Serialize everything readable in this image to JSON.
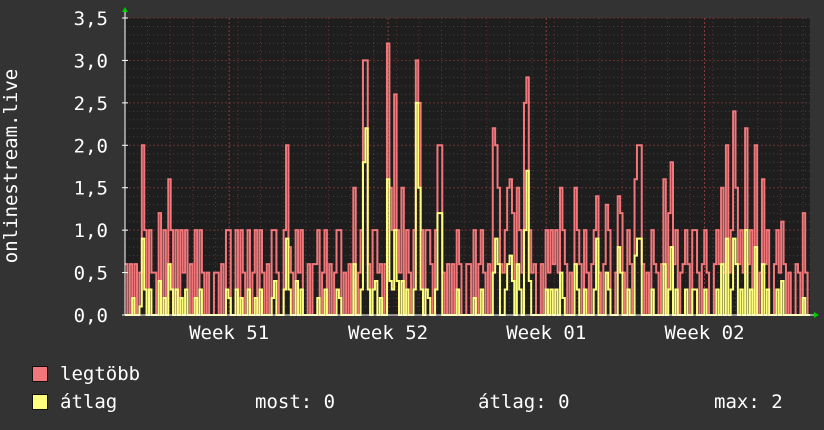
{
  "chart_data": {
    "type": "line",
    "ylabel": "onlinestream.live",
    "ylim": [
      0,
      3.5
    ],
    "y_ticks": [
      "0,0",
      "0,5",
      "1,0",
      "1,5",
      "2,0",
      "2,5",
      "3,0",
      "3,5"
    ],
    "x_ticks": [
      {
        "label": "Week 51",
        "pos": 0.152
      },
      {
        "label": "Week 52",
        "pos": 0.384
      },
      {
        "label": "Week 01",
        "pos": 0.615
      },
      {
        "label": "Week 02",
        "pos": 0.846
      }
    ],
    "grid": true,
    "series": [
      {
        "name": "legtöbb",
        "color": "#F2777A",
        "values": [
          0.6,
          0,
          0.6,
          0,
          0.6,
          0,
          0.5,
          2.0,
          1.0,
          0,
          1.0,
          0.5,
          0.5,
          0,
          1.2,
          0,
          1.0,
          0,
          1.6,
          1.0,
          0,
          1.0,
          0,
          1.0,
          0.5,
          1.0,
          0,
          0.6,
          0,
          1.0,
          0,
          1.0,
          0.5,
          0,
          0.5,
          0,
          0,
          0.5,
          0.5,
          0,
          0.6,
          0,
          1.0,
          1.0,
          0,
          0,
          1.0,
          0,
          1.0,
          0.5,
          0,
          1.0,
          0,
          0.5,
          1.0,
          0,
          1.0,
          0.5,
          0,
          0.6,
          0,
          1.0,
          1.0,
          0.5,
          0,
          0,
          1.0,
          2.0,
          0.8,
          0.5,
          0,
          1.0,
          0.5,
          1.0,
          0,
          0,
          0.6,
          0,
          0.6,
          0.6,
          1.0,
          0,
          0.5,
          1.0,
          0,
          0.6,
          0,
          0.5,
          1.0,
          1.0,
          0,
          0.5,
          0,
          0.6,
          0,
          1.5,
          0,
          0.5,
          1.0,
          3.0,
          3.0,
          0.6,
          0,
          1.0,
          1.0,
          0.5,
          0.6,
          0,
          0.6,
          3.2,
          1.5,
          1.0,
          2.6,
          1.0,
          0.5,
          1.5,
          0,
          1.0,
          0.5,
          0,
          1.0,
          3.0,
          2.5,
          1.0,
          0,
          1.0,
          1.0,
          0.6,
          0,
          1.0,
          2.0,
          2.0,
          0.5,
          0,
          0.6,
          0,
          0.6,
          0,
          1.0,
          0.6,
          0,
          0,
          0.6,
          0.6,
          0,
          1.0,
          0,
          0.6,
          1.0,
          0.5,
          0,
          0.6,
          0,
          2.2,
          2.0,
          1.5,
          0.6,
          0.5,
          1.0,
          1.5,
          1.6,
          1.2,
          0,
          1.5,
          1.0,
          0.5,
          2.5,
          2.8,
          1.0,
          0.5,
          0.6,
          0,
          0,
          0.6,
          0,
          1.0,
          0.5,
          1.0,
          0.6,
          1.0,
          0.5,
          1.5,
          1.0,
          0.6,
          0,
          0.5,
          0,
          1.5,
          1.0,
          0.6,
          0,
          1.0,
          0.5,
          0,
          0.6,
          1.0,
          1.4,
          0.5,
          0,
          0.6,
          1.3,
          1.0,
          0,
          0,
          0.5,
          1.4,
          1.2,
          0.5,
          0,
          1.0,
          0.6,
          0,
          1.6,
          2.0,
          2.0,
          0.6,
          0,
          0.5,
          0,
          1.0,
          0.6,
          0.5,
          0,
          0.6,
          1.6,
          0,
          1.2,
          1.8,
          0.6,
          1.0,
          0,
          0.5,
          0.6,
          1.0,
          0.6,
          0,
          1.0,
          1.0,
          0.5,
          0,
          0.6,
          1.0,
          0.5,
          0,
          0,
          0.6,
          1.0,
          0.6,
          1.5,
          0.5,
          2.0,
          0.5,
          1.0,
          2.4,
          1.5,
          0.6,
          1.0,
          0.5,
          2.2,
          0.6,
          1.0,
          0,
          2.0,
          0,
          0.5,
          1.6,
          0.6,
          1.0,
          0,
          0,
          0.6,
          1.0,
          0.5,
          1.1,
          0.6,
          0,
          0.5,
          0,
          0,
          0.6,
          0.5,
          0,
          1.2,
          0.5,
          0
        ]
      },
      {
        "name": "átlag",
        "color": "#FFFF7F",
        "values": [
          0,
          0,
          0,
          0.2,
          0,
          0,
          0.1,
          0.9,
          0.3,
          0,
          0.3,
          0,
          0,
          0,
          0.4,
          0,
          0.2,
          0,
          0.6,
          0.3,
          0,
          0.3,
          0,
          0.2,
          0,
          0.3,
          0,
          0,
          0,
          0.2,
          0,
          0.3,
          0,
          0,
          0,
          0,
          0,
          0,
          0,
          0,
          0,
          0,
          0.3,
          0.2,
          0,
          0,
          0.3,
          0,
          0.2,
          0,
          0,
          0.3,
          0,
          0,
          0.2,
          0,
          0.3,
          0,
          0,
          0,
          0,
          0.2,
          0.4,
          0,
          0,
          0,
          0.3,
          0.9,
          0.3,
          0,
          0,
          0.4,
          0,
          0.3,
          0,
          0,
          0,
          0,
          0,
          0,
          0.2,
          0,
          0,
          0.3,
          0,
          0,
          0,
          0,
          0.3,
          0.2,
          0,
          0,
          0,
          0,
          0,
          0.6,
          0,
          0,
          0.3,
          1.8,
          2.2,
          0.3,
          0,
          0.3,
          0.4,
          0,
          0.2,
          0,
          0,
          1.6,
          0.4,
          0.3,
          1.0,
          0.4,
          0,
          0.4,
          0,
          0.3,
          0,
          0,
          0.3,
          2.5,
          1.5,
          0.3,
          0,
          0.3,
          0.2,
          0,
          0,
          0.3,
          1.2,
          1.2,
          0,
          0,
          0,
          0,
          0,
          0,
          0.3,
          0,
          0,
          0,
          0,
          0,
          0,
          0.2,
          0,
          0,
          0.3,
          0,
          0,
          0,
          0,
          0.5,
          0.9,
          0.6,
          0,
          0,
          0.3,
          0.6,
          0.7,
          0.4,
          0,
          0.6,
          0.3,
          0,
          1.0,
          1.7,
          0.4,
          0,
          0,
          0,
          0,
          0,
          0,
          0.3,
          0,
          0.3,
          0,
          0.3,
          0,
          0.5,
          0.2,
          0,
          0,
          0,
          0,
          0.6,
          0.3,
          0,
          0,
          0.3,
          0,
          0,
          0,
          0.3,
          0.9,
          0,
          0,
          0,
          0.5,
          0.3,
          0,
          0,
          0,
          0.8,
          0.5,
          0,
          0,
          0.3,
          0,
          0,
          0.7,
          0.9,
          0.9,
          0,
          0,
          0,
          0,
          0.3,
          0,
          0,
          0,
          0,
          0.6,
          0,
          0.3,
          0.8,
          0,
          0.3,
          0,
          0,
          0,
          0.3,
          0,
          0,
          0.3,
          0.3,
          0,
          0,
          0,
          0.3,
          0,
          0,
          0,
          0,
          0.3,
          0,
          0.6,
          0,
          0.9,
          0,
          0.3,
          0.9,
          0.6,
          0,
          0.3,
          0,
          1.0,
          0,
          0.3,
          0,
          0.8,
          0,
          0,
          0.6,
          0,
          0.3,
          0,
          0,
          0,
          0.3,
          0,
          0.4,
          0,
          0,
          0,
          0,
          0,
          0,
          0,
          0,
          0.2,
          0,
          0
        ]
      }
    ]
  },
  "legend": [
    {
      "label": "legtöbb",
      "color": "#F2777A"
    },
    {
      "label": "átlag",
      "color": "#FFFF7F"
    }
  ],
  "stats": {
    "most": "most: 0",
    "atlag": "átlag: 0",
    "max": "max: 2"
  },
  "colors": {
    "background": "#333333",
    "plot_background": "#1e1e1e",
    "grid": "#6a3232",
    "axis": "#ffffff",
    "arrow": "#00cc00"
  }
}
